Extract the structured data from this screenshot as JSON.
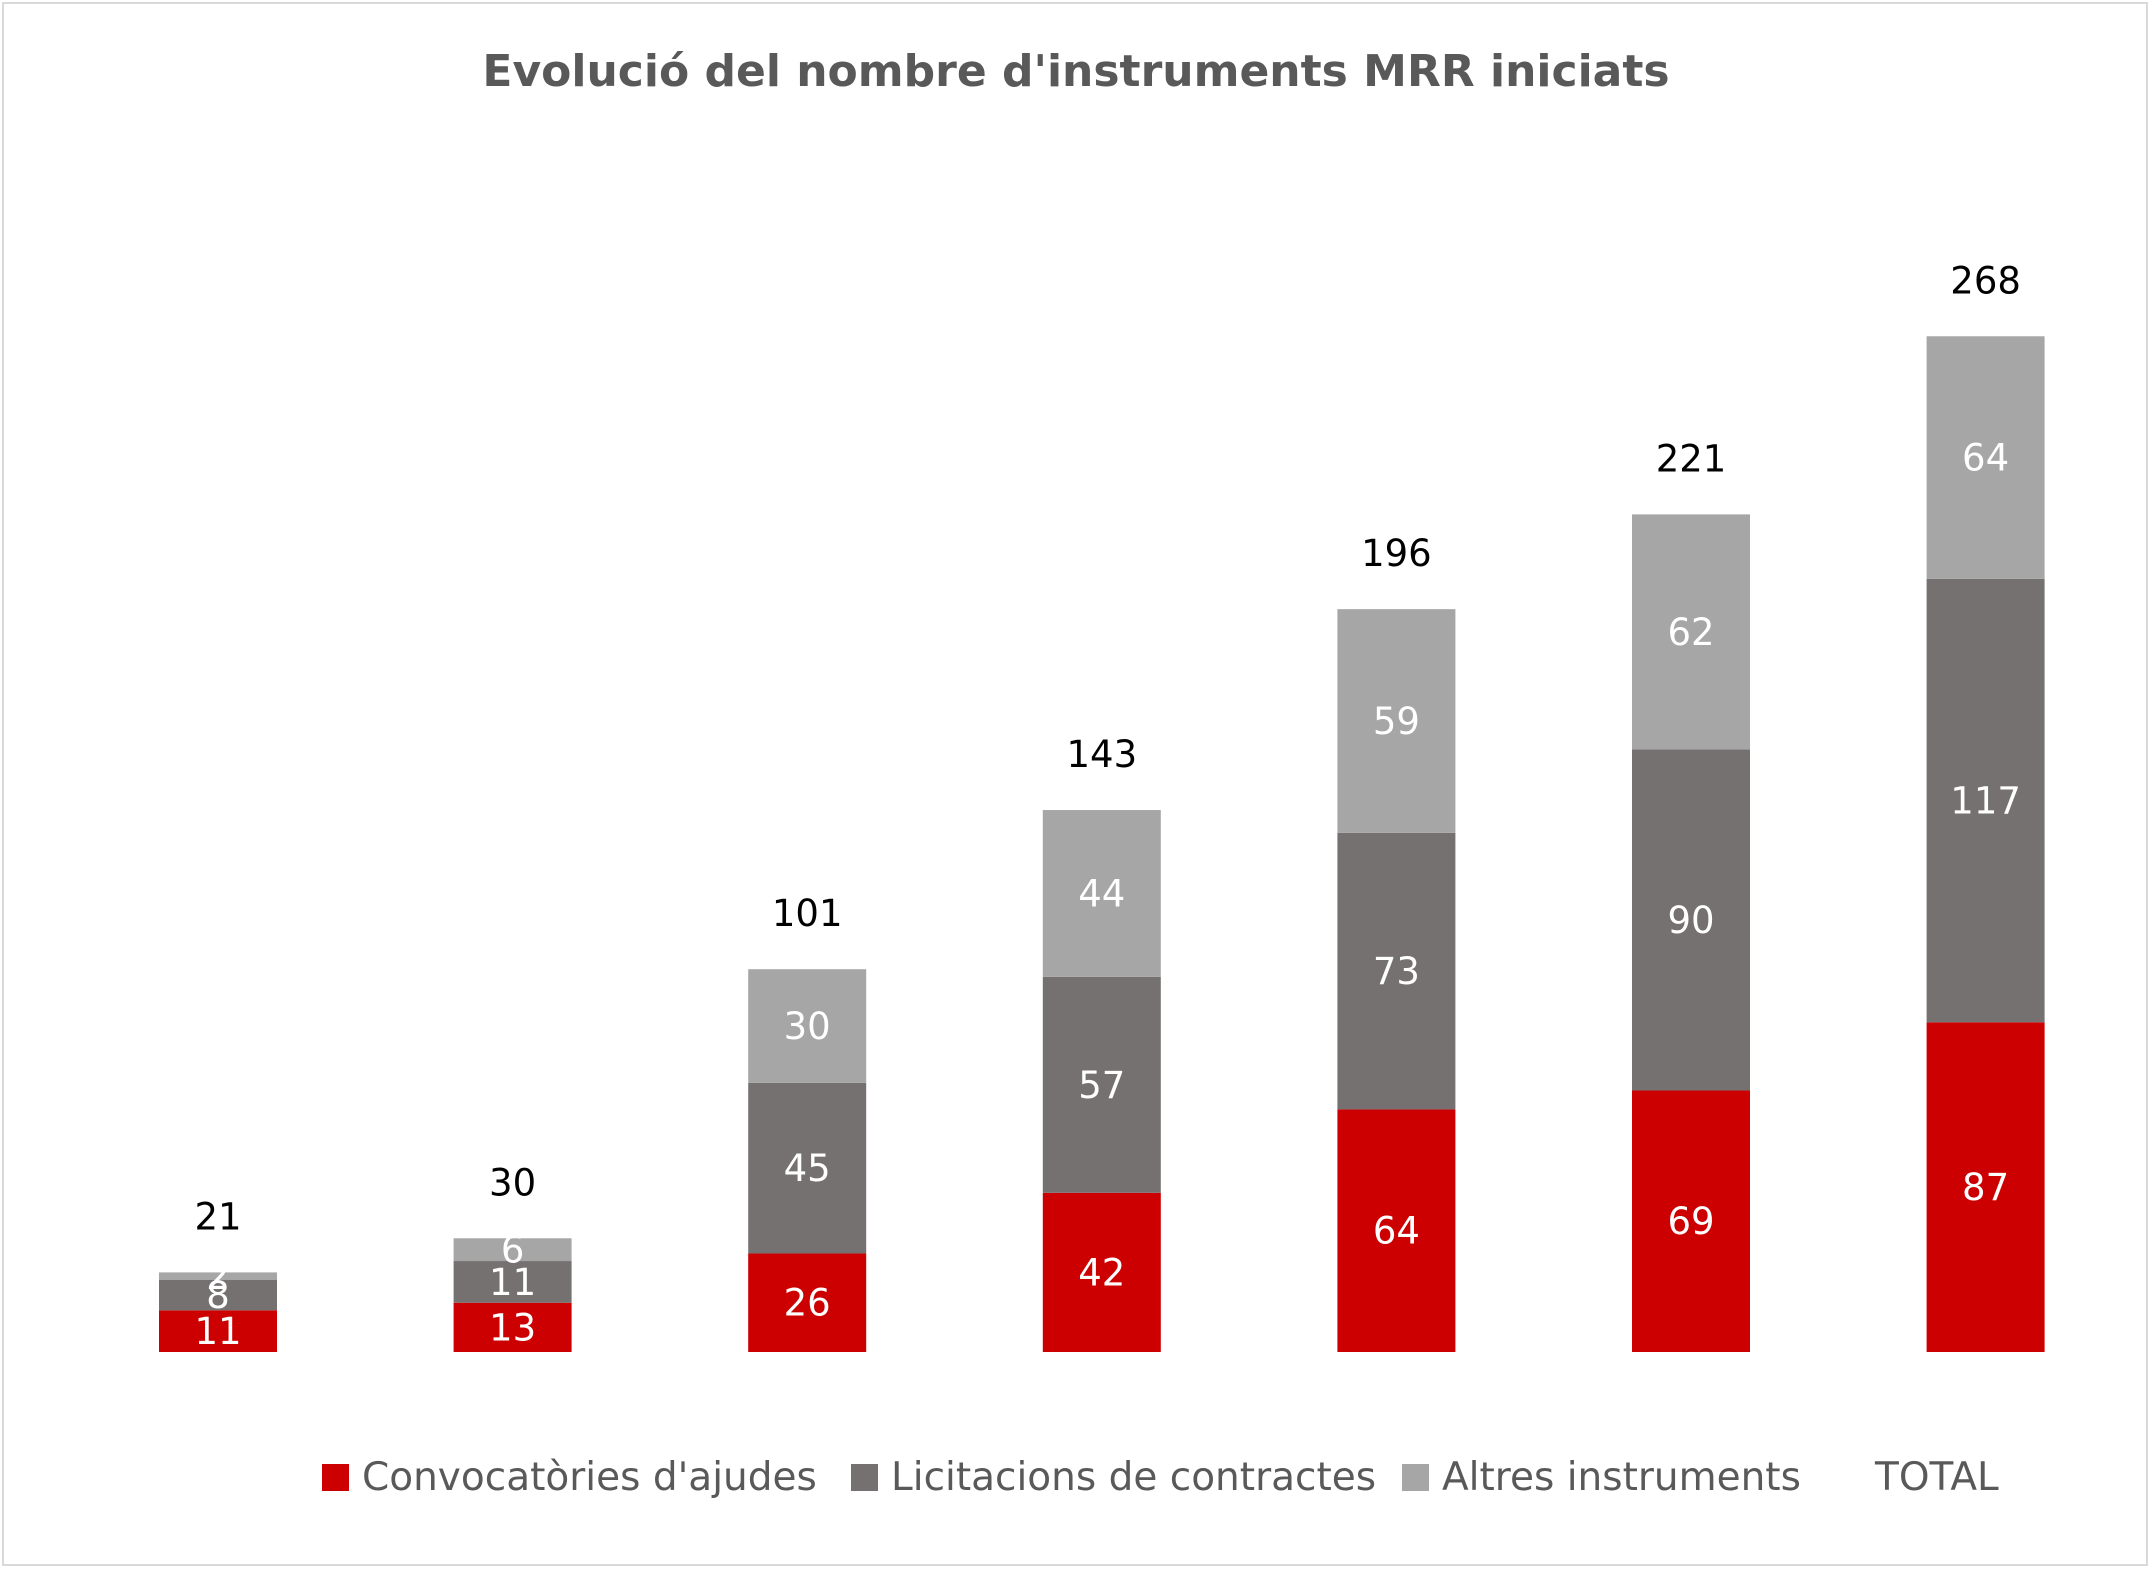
{
  "chart_data": {
    "type": "bar",
    "stacked": true,
    "title": "Evolució del nombre d'instruments MRR iniciats",
    "xlabel": "",
    "ylabel": "",
    "ylim": [
      0,
      300
    ],
    "grid": false,
    "legend_position": "bottom",
    "categories": [
      "",
      "",
      "",
      "",
      "",
      "",
      ""
    ],
    "series": [
      {
        "name": "Convocatòries d'ajudes",
        "color": "#cc0000",
        "values": [
          11,
          13,
          26,
          42,
          64,
          69,
          87
        ]
      },
      {
        "name": "Licitacions de contractes",
        "color": "#767171",
        "values": [
          8,
          11,
          45,
          57,
          73,
          90,
          117
        ]
      },
      {
        "name": "Altres instruments",
        "color": "#a6a6a6",
        "values": [
          2,
          6,
          30,
          44,
          59,
          62,
          64
        ]
      }
    ],
    "totals": {
      "name": "TOTAL",
      "values": [
        21,
        30,
        101,
        143,
        196,
        221,
        268
      ]
    }
  }
}
